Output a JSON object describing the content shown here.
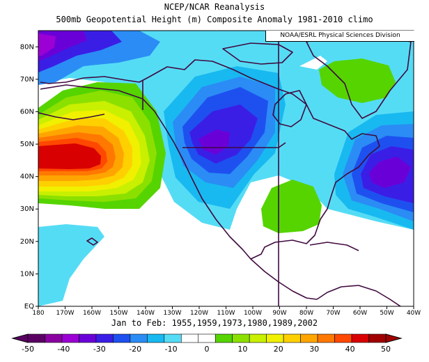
{
  "header": {
    "title_line1": "NCEP/NCAR Reanalysis",
    "title_line2": "500mb Geopotential Height (m) Composite Anomaly 1981-2010 climo",
    "credit": "NOAA/ESRL Physical Sciences Division",
    "subtitle": "Jan to Feb: 1955,1959,1973,1980,1989,2002"
  },
  "map": {
    "lat_ticks": [
      "EQ",
      "10N",
      "20N",
      "30N",
      "40N",
      "50N",
      "60N",
      "70N",
      "80N"
    ],
    "lon_ticks": [
      "180",
      "170W",
      "160W",
      "150W",
      "140W",
      "130W",
      "120W",
      "110W",
      "100W",
      "90W",
      "80W",
      "70W",
      "60W",
      "50W",
      "40W"
    ],
    "extent": {
      "lon_min": -180,
      "lon_max": -40,
      "lat_min": 0,
      "lat_max": 85
    },
    "features": [
      {
        "name": "positive-anomaly-north-pacific",
        "lon": -162,
        "lat": 45,
        "peak": 50
      },
      {
        "name": "negative-anomaly-western-north-america",
        "lon": -110,
        "lat": 52,
        "peak": -30
      },
      {
        "name": "negative-anomaly-north-atlantic",
        "lon": -50,
        "lat": 42,
        "peak": -30
      },
      {
        "name": "positive-anomaly-southeast-us",
        "lon": -85,
        "lat": 30,
        "peak": 10
      },
      {
        "name": "positive-anomaly-greenland",
        "lon": -57,
        "lat": 72,
        "peak": 10
      },
      {
        "name": "negative-anomaly-arctic",
        "lon": -178,
        "lat": 82,
        "peak": -30
      }
    ]
  },
  "colorbar": {
    "labels": [
      "-50",
      "-40",
      "-30",
      "-20",
      "-10",
      "0",
      "10",
      "20",
      "30",
      "40",
      "50"
    ],
    "colors": [
      "#5a0062",
      "#8a00a0",
      "#9b00d4",
      "#6a00d8",
      "#3a1ee6",
      "#1e50f0",
      "#2b8cf5",
      "#18b9f0",
      "#55dcf5",
      "#ffffff",
      "#ffffff",
      "#55d400",
      "#8ce000",
      "#c8f000",
      "#f0f000",
      "#ffd000",
      "#ffa500",
      "#ff7800",
      "#ff4800",
      "#d80000",
      "#a00000"
    ]
  },
  "colors": {
    "coastline": "#3f0a3f",
    "frame": "#000000"
  }
}
